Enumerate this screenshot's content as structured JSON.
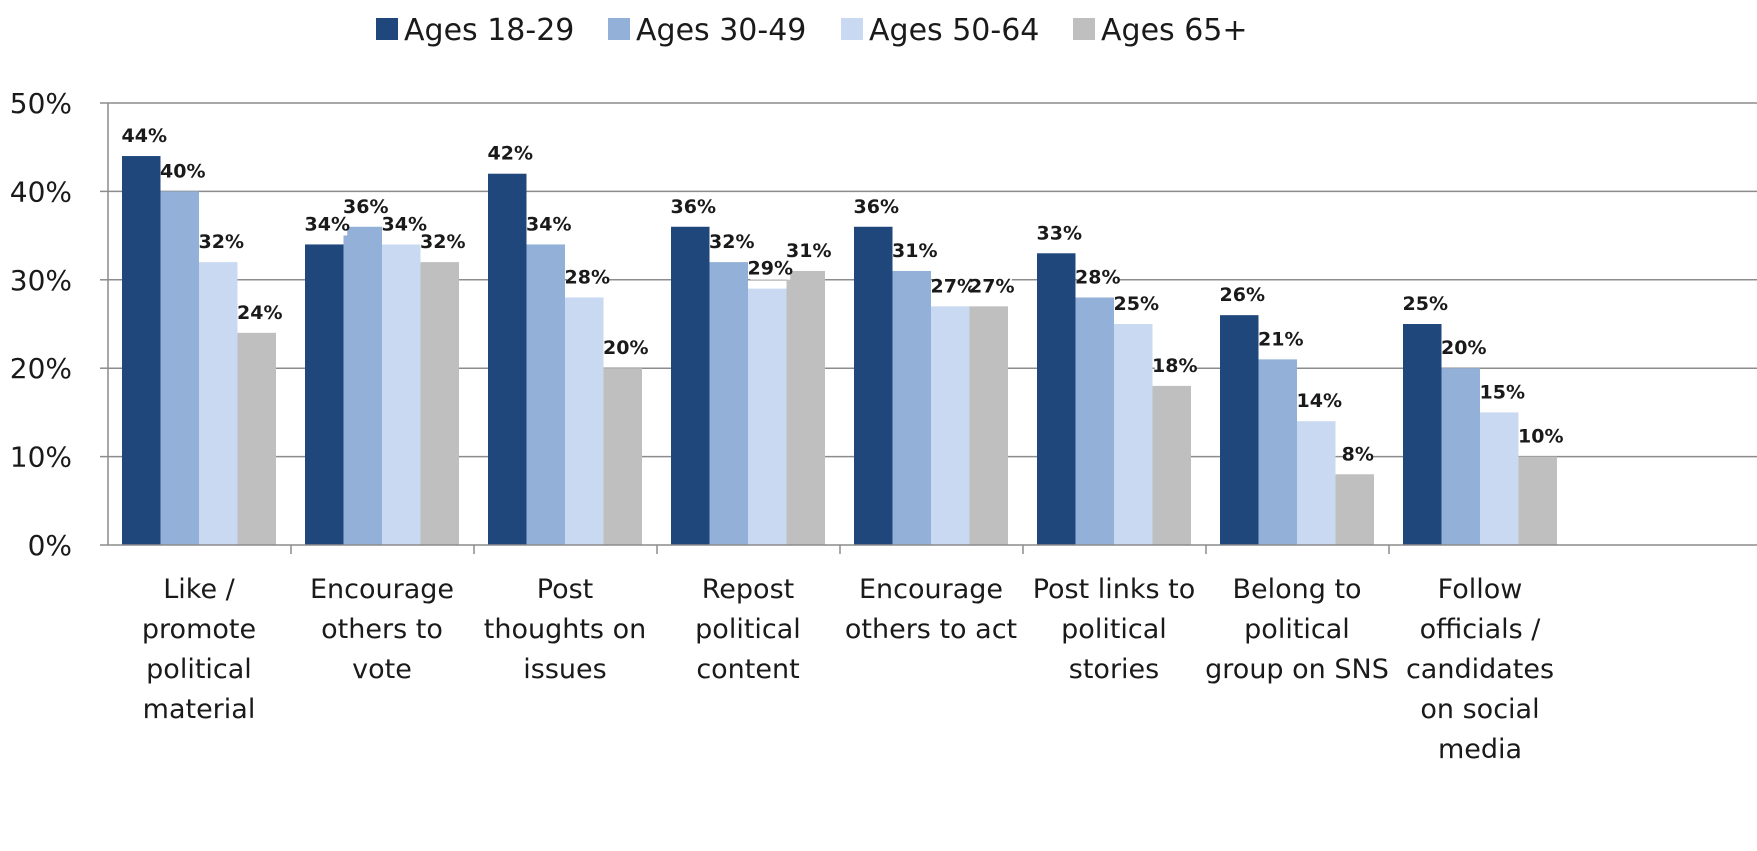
{
  "chart_data": {
    "type": "bar",
    "title": "",
    "xlabel": "",
    "ylabel": "",
    "ylim": [
      0,
      50
    ],
    "yticks": [
      0,
      10,
      20,
      30,
      40,
      50
    ],
    "ytick_labels": [
      "0%",
      "10%",
      "20%",
      "30%",
      "40%",
      "50%"
    ],
    "grid": true,
    "legend_position": "top-center",
    "categories": [
      [
        "Like /",
        "promote",
        "political",
        "material"
      ],
      [
        "Encourage",
        "others to",
        "vote"
      ],
      [
        "Post",
        "thoughts on",
        "issues"
      ],
      [
        "Repost",
        "political",
        "content"
      ],
      [
        "Encourage",
        "others to act"
      ],
      [
        "Post links to",
        "political",
        "stories"
      ],
      [
        "Belong to",
        "political",
        "group on SNS"
      ],
      [
        "Follow",
        "officials /",
        "candidates",
        "on social",
        "media"
      ]
    ],
    "series": [
      {
        "name": "Ages 18-29",
        "color": "#1f477b",
        "values": [
          44,
          34,
          42,
          36,
          36,
          33,
          26,
          25
        ]
      },
      {
        "name": "Ages 30-49",
        "color": "#93b1d8",
        "values": [
          40,
          36,
          34,
          32,
          31,
          28,
          21,
          20
        ]
      },
      {
        "name": "Ages 50-64",
        "color": "#c8d9f1",
        "values": [
          32,
          34,
          28,
          29,
          27,
          25,
          14,
          15
        ]
      },
      {
        "name": "Ages 65+",
        "color": "#bfbfbf",
        "values": [
          24,
          32,
          20,
          31,
          27,
          18,
          8,
          10
        ]
      }
    ],
    "value_suffix": "%"
  }
}
